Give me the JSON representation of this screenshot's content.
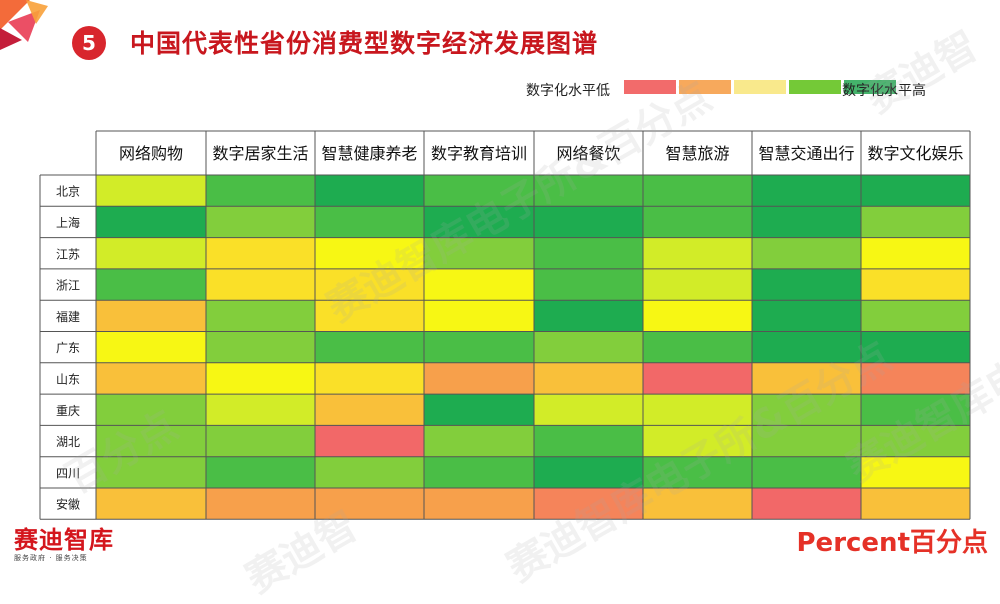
{
  "header": {
    "number": "5",
    "title": "中国代表性省份消费型数字经济发展图谱"
  },
  "legend": {
    "low_label": "数字化水平低",
    "high_label": "数字化水平高",
    "colors": [
      "#f26b6b",
      "#f7a95c",
      "#f9e98c",
      "#74c937",
      "#44b36b"
    ]
  },
  "chart_data": {
    "type": "heatmap",
    "title": "中国代表性省份消费型数字经济发展图谱",
    "columns": [
      "网络购物",
      "数字居家生活",
      "智慧健康养老",
      "数字教育培训",
      "网络餐饮",
      "智慧旅游",
      "智慧交通出行",
      "数字文化娱乐"
    ],
    "rows": [
      "北京",
      "上海",
      "江苏",
      "浙江",
      "福建",
      "广东",
      "山东",
      "重庆",
      "湖北",
      "四川",
      "安徽"
    ],
    "scale": "1 = lowest digitalization level (red), 10 = highest (green)",
    "values": [
      [
        7,
        9,
        10,
        9,
        9,
        9,
        10,
        10
      ],
      [
        10,
        8,
        9,
        10,
        10,
        9,
        10,
        8
      ],
      [
        7,
        5,
        6,
        8,
        9,
        7,
        8,
        6
      ],
      [
        9,
        5,
        5,
        6,
        9,
        7,
        10,
        5
      ],
      [
        4,
        8,
        5,
        6,
        10,
        6,
        10,
        8
      ],
      [
        6,
        8,
        9,
        9,
        8,
        9,
        10,
        10
      ],
      [
        4,
        6,
        5,
        3,
        4,
        1,
        4,
        2
      ],
      [
        8,
        7,
        4,
        10,
        7,
        7,
        8,
        9
      ],
      [
        8,
        8,
        1,
        8,
        9,
        7,
        8,
        8
      ],
      [
        8,
        9,
        8,
        9,
        10,
        9,
        9,
        6
      ],
      [
        4,
        3,
        3,
        3,
        2,
        4,
        1,
        4
      ]
    ]
  },
  "watermarks": [
    "赛迪智库电子所&百分点",
    "赛迪智库电子所&百分点",
    "百分点",
    "赛迪智",
    "赛迪智库电子所&百分点",
    "赛迪智"
  ],
  "footer": {
    "left_logo": "赛迪智库",
    "left_sub": "服务政府 · 服务决策",
    "right_logo": "Percent百分点"
  }
}
